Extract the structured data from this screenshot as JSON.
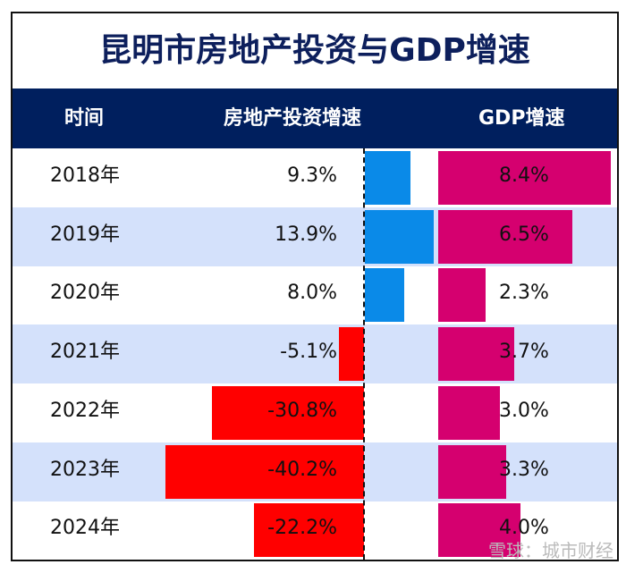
{
  "chart_data": {
    "type": "table",
    "title": "昆明市房地产投资与GDP增速",
    "columns": [
      "时间",
      "房地产投资增速",
      "GDP增速"
    ],
    "categories": [
      "2018年",
      "2019年",
      "2020年",
      "2021年",
      "2022年",
      "2023年",
      "2024年"
    ],
    "series": [
      {
        "name": "房地产投资增速",
        "values": [
          9.3,
          13.9,
          8.0,
          -5.1,
          -30.8,
          -40.2,
          -22.2
        ],
        "labels": [
          "9.3%",
          "13.9%",
          "8.0%",
          "-5.1%",
          "-30.8%",
          "-40.2%",
          "-22.2%"
        ]
      },
      {
        "name": "GDP增速",
        "values": [
          8.4,
          6.5,
          2.3,
          3.7,
          3.0,
          3.3,
          4.0
        ],
        "labels": [
          "8.4%",
          "6.5%",
          "2.3%",
          "3.7%",
          "3.0%",
          "3.3%",
          "4.0%"
        ]
      }
    ],
    "colors": {
      "positive": "#0a8ae8",
      "negative": "#ff0000",
      "gdp": "#d5006f",
      "header": "#001f5e",
      "alt_row": "#d4e1fb",
      "title": "#0d1f5c"
    }
  },
  "watermark": "雪球：城市财经"
}
